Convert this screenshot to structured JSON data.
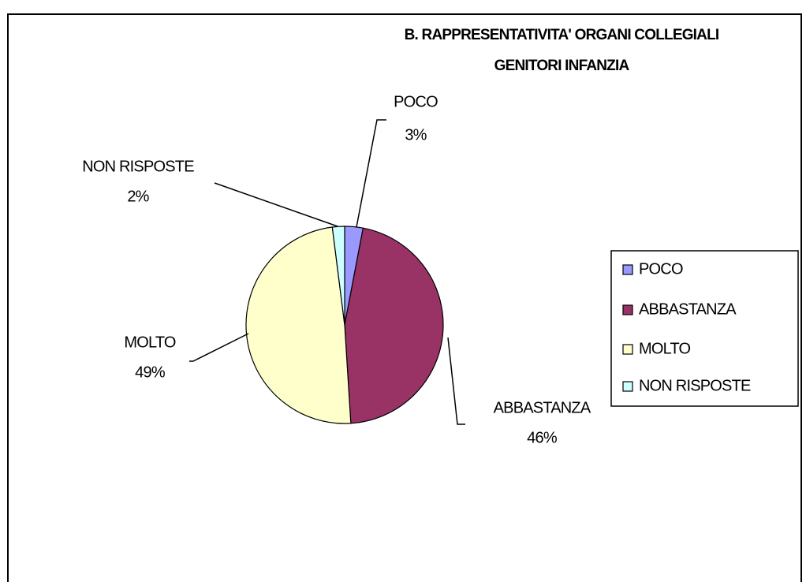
{
  "chart_data": {
    "type": "pie",
    "title": [
      "B. RAPPRESENTATIVITA' ORGANI COLLEGIALI",
      "GENITORI INFANZIA"
    ],
    "categories": [
      "POCO",
      "ABBASTANZA",
      "MOLTO",
      "NON RISPOSTE"
    ],
    "values": [
      3,
      46,
      49,
      2
    ],
    "value_labels": [
      "3%",
      "46%",
      "49%",
      "2%"
    ],
    "colors": [
      "#9999ff",
      "#993366",
      "#ffffcc",
      "#ccffff"
    ],
    "legend": "right"
  }
}
